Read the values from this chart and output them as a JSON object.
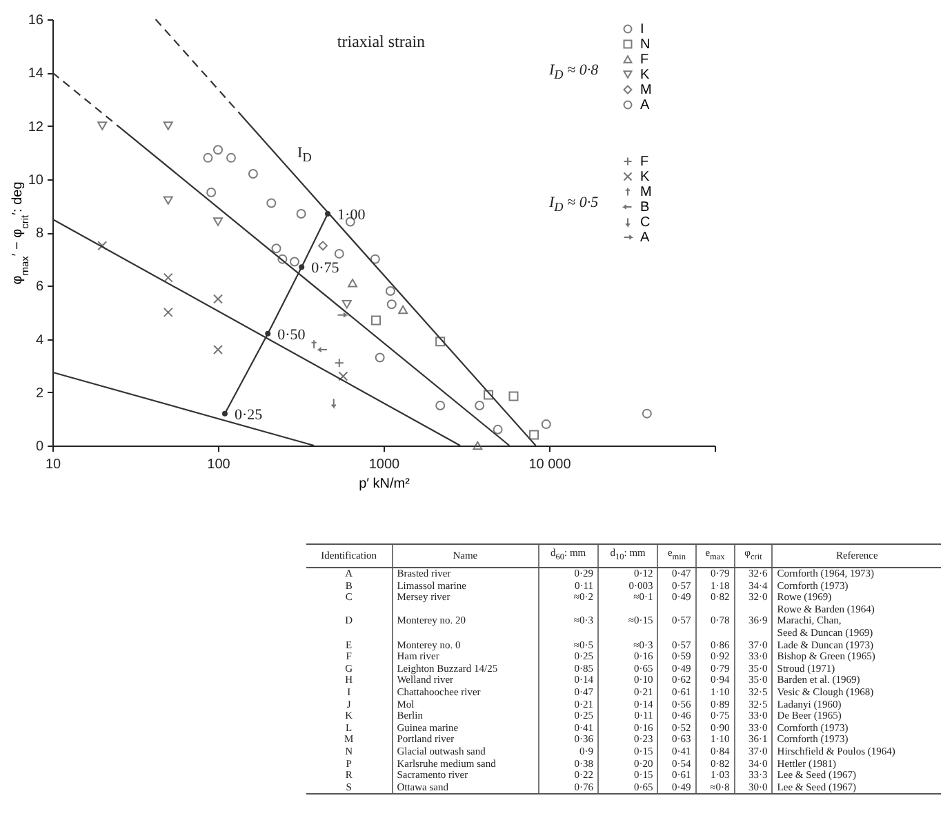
{
  "chart_data": {
    "type": "scatter",
    "xlabel": "p′ kN/m²",
    "ylabel": "φ$_{max}$′ − φ$_{crit}$′: deg",
    "log": "x",
    "xlim": [
      10,
      100000
    ],
    "xticks": [
      10,
      100,
      1000,
      {
        "value": 10000,
        "label": "10 000"
      },
      {
        "value": 100000,
        "label": null
      }
    ],
    "ylim": [
      0,
      16
    ],
    "yticks": [
      0,
      2,
      4,
      6,
      8,
      10,
      12,
      14,
      16
    ],
    "grid": false,
    "legend": "top right",
    "series": [
      {
        "type": "line",
        "line_style": "dashed",
        "color": "#333333",
        "x": [
          42,
          138
        ],
        "values": [
          16,
          12.4
        ]
      },
      {
        "type": "line",
        "line_style": "solid",
        "color": "#333333",
        "x": [
          138,
          8300
        ],
        "values": [
          12.4,
          0
        ]
      },
      {
        "type": "line",
        "line_style": "dashed",
        "color": "#333333",
        "x": [
          10,
          26
        ],
        "values": [
          14,
          11.9
        ]
      },
      {
        "type": "line",
        "line_style": "solid",
        "color": "#333333",
        "x": [
          26,
          5750
        ],
        "values": [
          11.9,
          0
        ]
      },
      {
        "type": "line",
        "line_style": "solid",
        "color": "#333333",
        "x": [
          10,
          2900
        ],
        "values": [
          8.5,
          0
        ]
      },
      {
        "type": "line",
        "line_style": "solid",
        "color": "#333333",
        "x": [
          10,
          380
        ],
        "values": [
          2.75,
          0
        ]
      },
      {
        "type": "line",
        "line_style": "solid",
        "marker": "circle",
        "color": "#333333",
        "x": [
          110,
          200,
          320,
          460
        ],
        "values": [
          1.2,
          4.2,
          6.7,
          8.7
        ]
      },
      {
        "name": "I",
        "marker": "circle",
        "color": "#444444",
        "x": [
          87,
          91,
          100,
          120,
          163,
          210,
          318,
          245,
          290,
          540,
          890,
          1100,
          1120,
          950,
          2200,
          3800,
          4900,
          9600,
          39000
        ],
        "values": [
          10.8,
          9.5,
          11.1,
          10.8,
          10.2,
          9.1,
          8.7,
          7.0,
          6.9,
          7.2,
          7.0,
          5.8,
          5.3,
          3.3,
          1.5,
          1.5,
          0.6,
          0.8,
          1.2
        ]
      },
      {
        "name": "N",
        "marker": "square",
        "color": "#444444",
        "x": [
          900,
          2200,
          4300,
          6100,
          8100
        ],
        "values": [
          4.7,
          3.9,
          1.9,
          1.85,
          0.4
        ]
      },
      {
        "name": "F",
        "marker": "triangle",
        "color": "#444444",
        "x": [
          650,
          1310,
          3700
        ],
        "values": [
          6.1,
          5.1,
          0
        ]
      },
      {
        "name": "K",
        "marker": "triangle-down",
        "color": "#444444",
        "x": [
          20,
          50,
          50,
          100,
          600
        ],
        "values": [
          12,
          12,
          9.2,
          8.4,
          5.3
        ]
      },
      {
        "name": "M",
        "marker": "diamond",
        "color": "#444444",
        "x": [
          430
        ],
        "values": [
          7.5
        ]
      },
      {
        "name": "A",
        "marker": "circle",
        "color": "#444444",
        "x": [
          630,
          225
        ],
        "values": [
          8.4,
          7.4
        ]
      },
      {
        "name": "F",
        "marker": "cross",
        "color": "#383838",
        "x": [
          540
        ],
        "values": [
          3.1
        ]
      },
      {
        "name": "K",
        "marker": "cross",
        "color": "#383838",
        "x": [
          20,
          50,
          50,
          100,
          100,
          570
        ],
        "values": [
          7.5,
          6.3,
          5.0,
          5.5,
          3.6,
          2.6
        ]
      },
      {
        "name": "M",
        "marker": "cross",
        "color": "#383838",
        "x": [
          380
        ],
        "values": [
          3.8
        ]
      },
      {
        "name": "B",
        "marker": "cross",
        "color": "#383838",
        "x": [
          430
        ],
        "values": [
          3.6
        ]
      },
      {
        "name": "C",
        "marker": "cross",
        "color": "#383838",
        "x": [
          500
        ],
        "values": [
          1.6
        ]
      },
      {
        "name": "A",
        "marker": "cross",
        "color": "#383838",
        "x": [
          560
        ],
        "values": [
          4.9
        ]
      }
    ],
    "annotations": [
      {
        "text": "0·25",
        "x": 110,
        "y": 1.2
      },
      {
        "text": "0·50",
        "x": 200,
        "y": 4.2
      },
      {
        "text": "0·75",
        "x": 320,
        "y": 6.7
      },
      {
        "text": "1·00",
        "x": 460,
        "y": 8.7
      },
      "I$_{D}$ ≈ 0·8",
      "I$_{D}$ ≈ 0·5",
      "triaxial strain",
      "I$_{D}$",
      "Identification",
      "Name",
      "d$_{60}$: mm",
      "d$_{10}$: mm",
      "e$_{min}$",
      "e$_{max}$",
      "φ$_{crit}$",
      "Reference",
      "A",
      "Brasted river",
      "0·29",
      "0·12",
      "0·47",
      "0·79",
      "32·6",
      "Cornforth (1964, 1973)",
      "B",
      "Limassol marine",
      "0·11",
      "0·003",
      "0·57",
      "1·18",
      "34·4",
      "Cornforth (1973)",
      "C",
      "Mersey river",
      "≈0·2",
      "≈0·1",
      "0·49",
      "0·82",
      "32·0",
      "Rowe (1969)",
      "D",
      "Monterey no. 20",
      "≈0·3",
      "≈0·15",
      "0·57",
      "0·78",
      "36·9",
      "Rowe & Barden (1964)\nMarachi, Chan,\nSeed & Duncan (1969)",
      "E",
      "Monterey no. 0",
      "≈0·5",
      "≈0·3",
      "0·57",
      "0·86",
      "37·0",
      "Lade & Duncan (1973)",
      "F",
      "Ham river",
      "0·25",
      "0·16",
      "0·59",
      "0·92",
      "33·0",
      "Bishop & Green (1965)",
      "G",
      "Leighton Buzzard 14/25",
      "0·85",
      "0·65",
      "0·49",
      "0·79",
      "35·0",
      "Stroud (1971)",
      "H",
      "Welland river",
      "0·14",
      "0·10",
      "0·62",
      "0·94",
      "35·0",
      "Barden et al. (1969)",
      "I",
      "Chattahoochee river",
      "0·47",
      "0·21",
      "0·61",
      "1·10",
      "32·5",
      "Vesic & Clough (1968)",
      "J",
      "Mol",
      "0·21",
      "0·14",
      "0·56",
      "0·89",
      "32·5",
      "Ladanyi (1960)",
      "K",
      "Berlin",
      "0·25",
      "0·11",
      "0·46",
      "0·75",
      "33·0",
      "De Beer (1965)",
      "L",
      "Guinea marine",
      "0·41",
      "0·16",
      "0·52",
      "0·90",
      "33·0",
      "Cornforth (1973)",
      "M",
      "Portland river",
      "0·36",
      "0·23",
      "0·63",
      "1·10",
      "36·1",
      "Cornforth (1973)",
      "N",
      "Glacial outwash sand",
      "0·9",
      "0·15",
      "0·41",
      "0·84",
      "37·0",
      "Hirschfield & Poulos (1964)",
      "P",
      "Karlsruhe medium sand",
      "0·38",
      "0·20",
      "0·54",
      "0·82",
      "34·0",
      "Hettler (1981)",
      "R",
      "Sacramento river",
      "0·22",
      "0·15",
      "0·61",
      "1·03",
      "33·3",
      "Lee & Seed (1967)",
      "S",
      "Ottawa sand",
      "0·76",
      "0·65",
      "0·49",
      "≈0·8",
      "30·0",
      "Lee & Seed (1967)"
    ]
  }
}
